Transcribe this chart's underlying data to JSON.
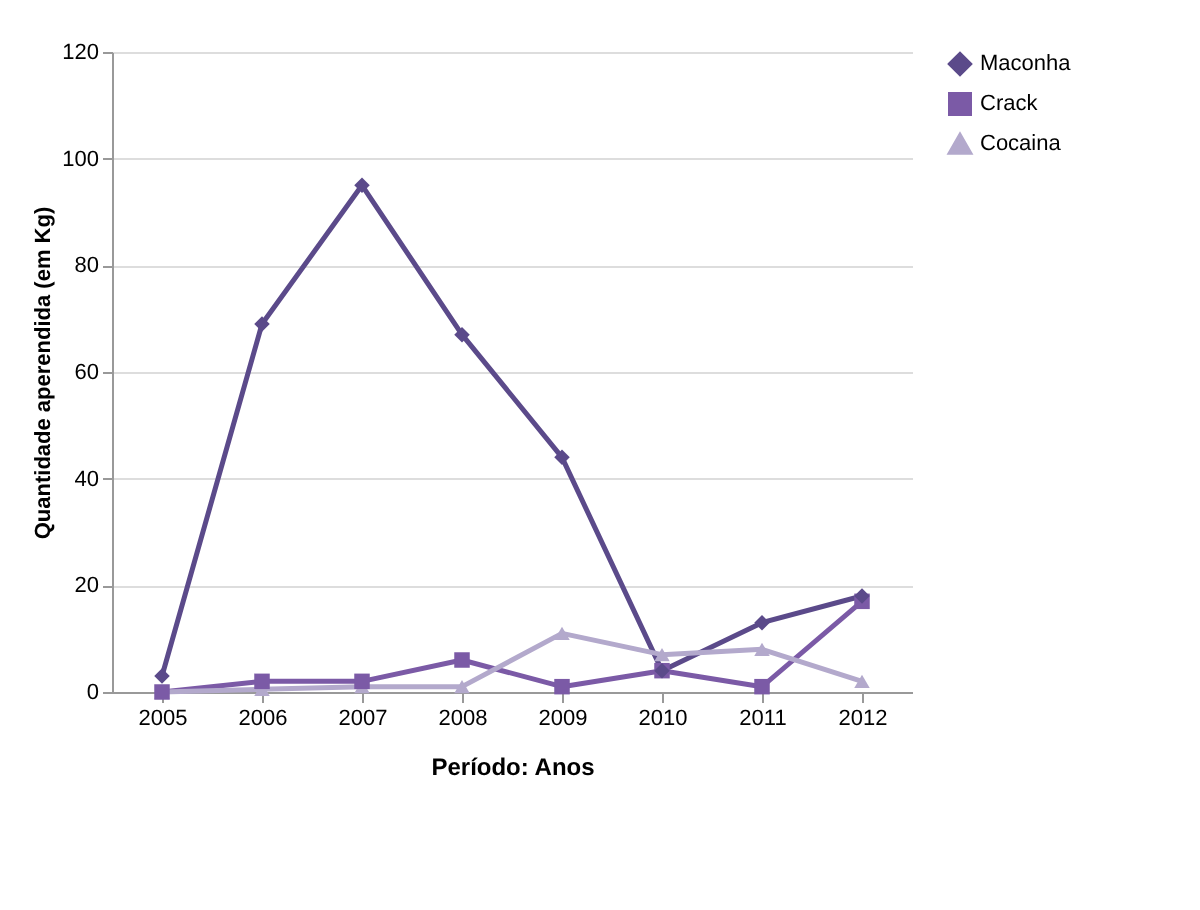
{
  "chart_data": {
    "type": "line",
    "xlabel": "Período: Anos",
    "ylabel": "Quantidade aperendida (em Kg)",
    "categories": [
      "2005",
      "2006",
      "2007",
      "2008",
      "2009",
      "2010",
      "2011",
      "2012"
    ],
    "series": [
      {
        "name": "Maconha",
        "color": "#5b4a8a",
        "marker": "diamond",
        "values": [
          3,
          69,
          95,
          67,
          44,
          4,
          13,
          18
        ]
      },
      {
        "name": "Crack",
        "color": "#7b5aa6",
        "marker": "square",
        "values": [
          0,
          2,
          2,
          6,
          1,
          4,
          1,
          17
        ]
      },
      {
        "name": "Cocaina",
        "color": "#b3a9cc",
        "marker": "triangle",
        "values": [
          0,
          0.5,
          1,
          1,
          11,
          7,
          8,
          2
        ]
      }
    ],
    "ylim": [
      0,
      120
    ],
    "yticks": [
      0,
      20,
      40,
      60,
      80,
      100,
      120
    ],
    "grid": "y",
    "legend": "right"
  }
}
